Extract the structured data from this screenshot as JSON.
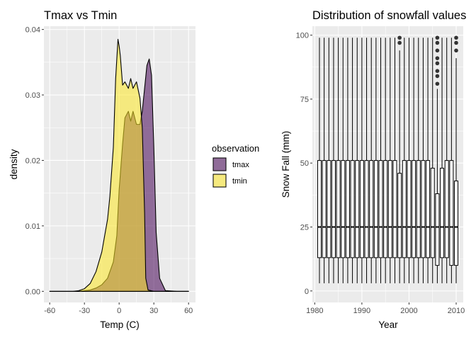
{
  "chart_data": [
    {
      "type": "area",
      "title": "Tmax vs Tmin",
      "xlabel": "Temp (C)",
      "ylabel": "density",
      "xlim": [
        -65,
        66
      ],
      "ylim": [
        -0.0017,
        0.0405
      ],
      "x_ticks": [
        -60,
        -30,
        0,
        30,
        60
      ],
      "x_tick_labels": [
        "-60",
        "-30",
        "0",
        "30",
        "60"
      ],
      "y_ticks": [
        0,
        0.01,
        0.02,
        0.03,
        0.04
      ],
      "y_tick_labels": [
        "0.00",
        "0.01",
        "0.02",
        "0.03",
        "0.04"
      ],
      "grid": true,
      "legend": {
        "title": "observation",
        "position": "right",
        "entries": [
          {
            "label": "tmax",
            "color": "#440154"
          },
          {
            "label": "tmin",
            "color": "#FDE725"
          }
        ]
      },
      "series": [
        {
          "name": "tmax",
          "color": "#440154",
          "x": [
            -60,
            -35,
            -30,
            -25,
            -20,
            -15,
            -10,
            -5,
            -2,
            0,
            3,
            5,
            8,
            10,
            12,
            15,
            18,
            20,
            22,
            24,
            26,
            28,
            30,
            32,
            35,
            40,
            50,
            60
          ],
          "y": [
            0,
            0,
            0.0001,
            0.0002,
            0.0005,
            0.001,
            0.002,
            0.0045,
            0.0085,
            0.0155,
            0.0225,
            0.0265,
            0.0275,
            0.026,
            0.0275,
            0.0255,
            0.0255,
            0.0275,
            0.031,
            0.0345,
            0.0355,
            0.033,
            0.022,
            0.009,
            0.002,
            0.0001,
            0,
            0
          ]
        },
        {
          "name": "tmin",
          "color": "#FDE725",
          "x": [
            -60,
            -40,
            -35,
            -30,
            -25,
            -20,
            -15,
            -10,
            -8,
            -5,
            -3,
            -1,
            0,
            1,
            3,
            5,
            8,
            10,
            12,
            15,
            18,
            20,
            22,
            23,
            25,
            30,
            35,
            40,
            50,
            60
          ],
          "y": [
            0,
            0,
            0.0001,
            0.0004,
            0.0012,
            0.003,
            0.006,
            0.011,
            0.0145,
            0.022,
            0.0325,
            0.0385,
            0.0375,
            0.036,
            0.0315,
            0.032,
            0.031,
            0.0325,
            0.031,
            0.032,
            0.0295,
            0.025,
            0.012,
            0.002,
            0.0002,
            0,
            0,
            0,
            0,
            0
          ]
        }
      ]
    },
    {
      "type": "box",
      "title": "Distribution of snowfall values",
      "xlabel": "Year",
      "ylabel": "Snow Fall (mm)",
      "xlim": [
        1979.5,
        2011.5
      ],
      "ylim": [
        -4.5,
        103.5
      ],
      "x_ticks": [
        1980,
        1990,
        2000,
        2010
      ],
      "x_tick_labels": [
        "1980",
        "1990",
        "2000",
        "2010"
      ],
      "y_ticks": [
        0,
        25,
        50,
        75,
        100
      ],
      "y_tick_labels": [
        "0",
        "25",
        "50",
        "75",
        "100"
      ],
      "grid": true,
      "box_color": "#000000",
      "box_fill": "#ffffff",
      "years": [
        1981,
        1982,
        1983,
        1984,
        1985,
        1986,
        1987,
        1988,
        1989,
        1990,
        1991,
        1992,
        1993,
        1994,
        1995,
        1996,
        1997,
        1998,
        1999,
        2000,
        2001,
        2002,
        2003,
        2004,
        2005,
        2006,
        2007,
        2008,
        2009,
        2010
      ],
      "q1": [
        13,
        13,
        13,
        13,
        13,
        13,
        13,
        13,
        13,
        13,
        13,
        13,
        13,
        13,
        13,
        13,
        13,
        13,
        13,
        13,
        13,
        13,
        13,
        13,
        13,
        10,
        13,
        13,
        10,
        10
      ],
      "median": [
        25,
        25,
        25,
        25,
        25,
        25,
        25,
        25,
        25,
        25,
        25,
        25,
        25,
        25,
        25,
        25,
        25,
        25,
        25,
        25,
        25,
        25,
        25,
        25,
        25,
        25,
        25,
        25,
        25,
        25
      ],
      "q3": [
        51,
        51,
        51,
        51,
        51,
        51,
        51,
        51,
        51,
        51,
        51,
        51,
        51,
        51,
        51,
        51,
        51,
        46,
        51,
        51,
        51,
        51,
        51,
        51,
        48,
        38,
        48,
        51,
        51,
        43
      ],
      "whisker_low": [
        3,
        3,
        3,
        3,
        3,
        3,
        3,
        3,
        3,
        3,
        3,
        3,
        3,
        3,
        3,
        3,
        3,
        3,
        3,
        3,
        3,
        3,
        3,
        3,
        3,
        3,
        3,
        3,
        3,
        3
      ],
      "whisker_high": [
        99,
        99,
        99,
        99,
        99,
        99,
        99,
        99,
        99,
        99,
        99,
        99,
        99,
        99,
        99,
        99,
        99,
        94,
        99,
        99,
        99,
        99,
        99,
        99,
        99,
        79,
        99,
        99,
        99,
        91
      ],
      "outliers": [
        {
          "year": 1998,
          "values": [
            97,
            99
          ]
        },
        {
          "year": 2006,
          "values": [
            81,
            84,
            86,
            89,
            91,
            94,
            97,
            99
          ]
        },
        {
          "year": 2010,
          "values": [
            94,
            97,
            99
          ]
        }
      ]
    }
  ]
}
